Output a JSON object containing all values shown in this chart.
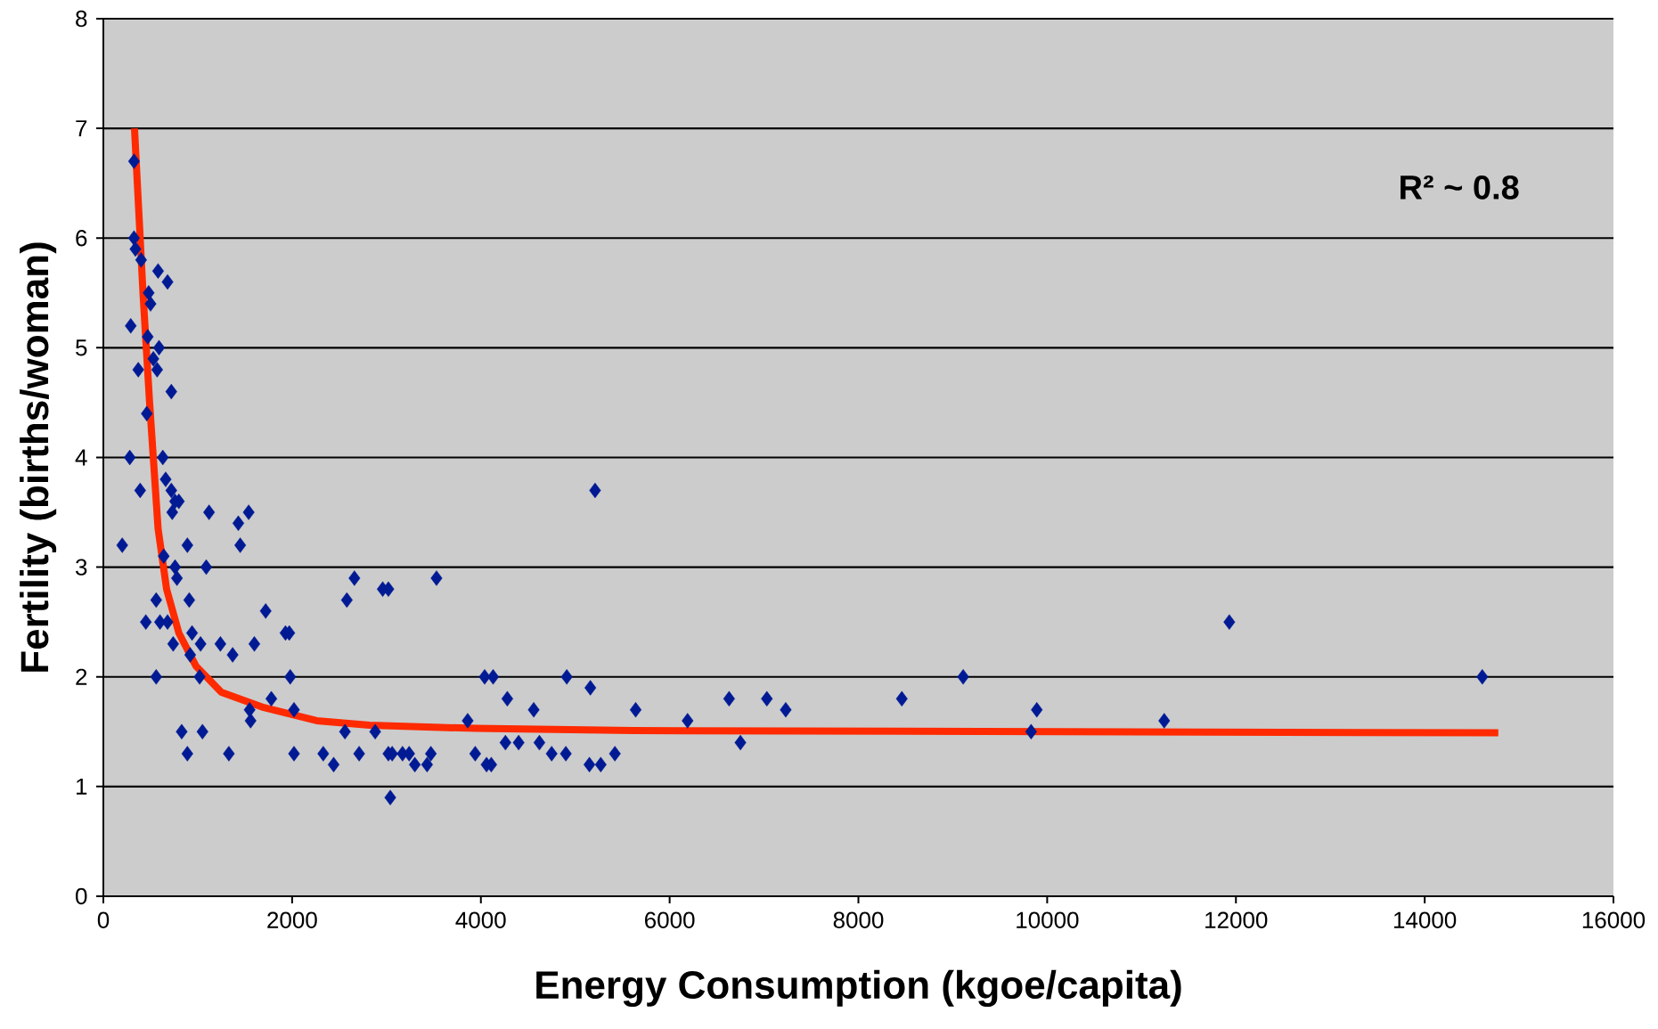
{
  "chart_data": {
    "type": "scatter",
    "xlabel": "Energy Consumption (kgoe/capita)",
    "ylabel": "Fertility (births/woman)",
    "annotations": [
      "R² ~ 0.8"
    ],
    "xlim": [
      0,
      16000
    ],
    "xticks": [
      0,
      2000,
      4000,
      6000,
      8000,
      10000,
      12000,
      14000,
      16000
    ],
    "ylim": [
      0,
      8
    ],
    "yticks": [
      0,
      1,
      2,
      3,
      4,
      5,
      6,
      7,
      8
    ],
    "grid": "y",
    "series": [
      {
        "marker": "diamond",
        "color": "#001a94",
        "x": [
          200,
          280,
          290,
          325,
          325,
          340,
          370,
          390,
          400,
          450,
          460,
          470,
          480,
          500,
          530,
          560,
          560,
          570,
          580,
          590,
          600,
          630,
          640,
          660,
          680,
          680,
          720,
          720,
          730,
          740,
          760,
          760,
          780,
          800,
          830,
          890,
          890,
          910,
          920,
          940,
          1020,
          1030,
          1050,
          1090,
          1120,
          1240,
          1330,
          1370,
          1430,
          1450,
          1540,
          1550,
          1560,
          1600,
          1720,
          1780,
          1930,
          1970,
          1980,
          2020,
          2020,
          2330,
          2440,
          2560,
          2580,
          2660,
          2710,
          2880,
          2960,
          3020,
          3020,
          3040,
          3060,
          3170,
          3240,
          3300,
          3430,
          3470,
          3530,
          3860,
          3940,
          4040,
          4060,
          4110,
          4130,
          4260,
          4280,
          4400,
          4560,
          4620,
          4750,
          4900,
          4910,
          5150,
          5160,
          5210,
          5270,
          5420,
          5640,
          6190,
          6630,
          6750,
          7030,
          7230,
          8460,
          9110,
          9830,
          9890,
          11240,
          11930,
          14610
        ],
        "values": [
          3.2,
          4.0,
          5.2,
          6.7,
          6.0,
          5.9,
          4.8,
          3.7,
          5.8,
          2.5,
          4.4,
          5.1,
          5.5,
          5.4,
          4.9,
          2.7,
          2.0,
          4.8,
          5.7,
          5.0,
          2.5,
          4.0,
          3.1,
          3.8,
          2.5,
          5.6,
          4.6,
          3.7,
          3.5,
          2.3,
          3.6,
          3.0,
          2.9,
          3.6,
          1.5,
          3.2,
          1.3,
          2.7,
          2.2,
          2.4,
          2.0,
          2.3,
          1.5,
          3.0,
          3.5,
          2.3,
          1.3,
          2.2,
          3.4,
          3.2,
          3.5,
          1.7,
          1.6,
          2.3,
          2.6,
          1.8,
          2.4,
          2.4,
          2.0,
          1.7,
          1.3,
          1.3,
          1.2,
          1.5,
          2.7,
          2.9,
          1.3,
          1.5,
          2.8,
          2.8,
          1.3,
          0.9,
          1.3,
          1.3,
          1.3,
          1.2,
          1.2,
          1.3,
          2.9,
          1.6,
          1.3,
          2.0,
          1.2,
          1.2,
          2.0,
          1.4,
          1.8,
          1.4,
          1.7,
          1.4,
          1.3,
          1.3,
          2.0,
          1.2,
          1.9,
          3.7,
          1.2,
          1.3,
          1.7,
          1.6,
          1.8,
          1.4,
          1.8,
          1.7,
          1.8,
          2.0,
          1.5,
          1.7,
          1.6,
          2.5,
          2.0
        ]
      },
      {
        "type": "line",
        "marker": "none",
        "line_style": "solid",
        "color": "#ff2a00",
        "x": [
          330,
          420,
          490,
          580,
          670,
          800,
          980,
          1250,
          1700,
          2260,
          2820,
          3940,
          5620,
          10100,
          14780
        ],
        "values": [
          7.0,
          5.5,
          4.5,
          3.35,
          2.8,
          2.4,
          2.1,
          1.86,
          1.72,
          1.6,
          1.56,
          1.53,
          1.51,
          1.5,
          1.49
        ]
      }
    ]
  }
}
